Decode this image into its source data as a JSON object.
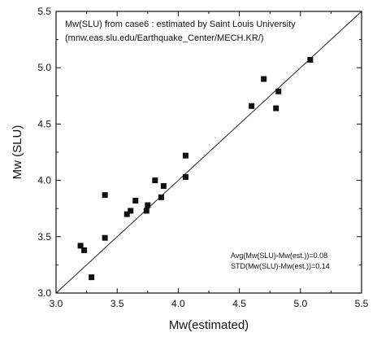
{
  "chart_data": {
    "type": "scatter",
    "title": "",
    "xlabel": "Mw(estimated)",
    "ylabel": "Mw (SLU)",
    "xlim": [
      3.0,
      5.5
    ],
    "ylim": [
      3.0,
      5.5
    ],
    "x_ticks": [
      "3.0",
      "3.5",
      "4.0",
      "4.5",
      "5.0",
      "5.5"
    ],
    "y_ticks": [
      "3.0",
      "3.5",
      "4.0",
      "4.5",
      "5.0",
      "5.5"
    ],
    "grid": false,
    "marker": "square",
    "reference_line": "1:1 diagonal",
    "annotation_lines": [
      "Mw(SLU) from case6 : estimated by Saint Louis University",
      "(mnw.eas.slu.edu/Earthquake_Center/MECH.KR/)"
    ],
    "stats_lines": [
      "Avg(Mw(SLU)-Mw(est.))=0.08",
      "STD(Mw(SLU)-Mw(est.))=0.14"
    ],
    "points": [
      {
        "x": 3.2,
        "y": 3.42
      },
      {
        "x": 3.23,
        "y": 3.38
      },
      {
        "x": 3.29,
        "y": 3.14
      },
      {
        "x": 3.4,
        "y": 3.49
      },
      {
        "x": 3.4,
        "y": 3.87
      },
      {
        "x": 3.58,
        "y": 3.7
      },
      {
        "x": 3.61,
        "y": 3.73
      },
      {
        "x": 3.65,
        "y": 3.82
      },
      {
        "x": 3.74,
        "y": 3.73
      },
      {
        "x": 3.75,
        "y": 3.78
      },
      {
        "x": 3.81,
        "y": 4.0
      },
      {
        "x": 3.86,
        "y": 3.85
      },
      {
        "x": 3.88,
        "y": 3.95
      },
      {
        "x": 4.06,
        "y": 4.03
      },
      {
        "x": 4.06,
        "y": 4.22
      },
      {
        "x": 4.6,
        "y": 4.66
      },
      {
        "x": 4.7,
        "y": 4.9
      },
      {
        "x": 4.8,
        "y": 4.64
      },
      {
        "x": 4.82,
        "y": 4.79
      },
      {
        "x": 5.08,
        "y": 5.07
      }
    ]
  }
}
